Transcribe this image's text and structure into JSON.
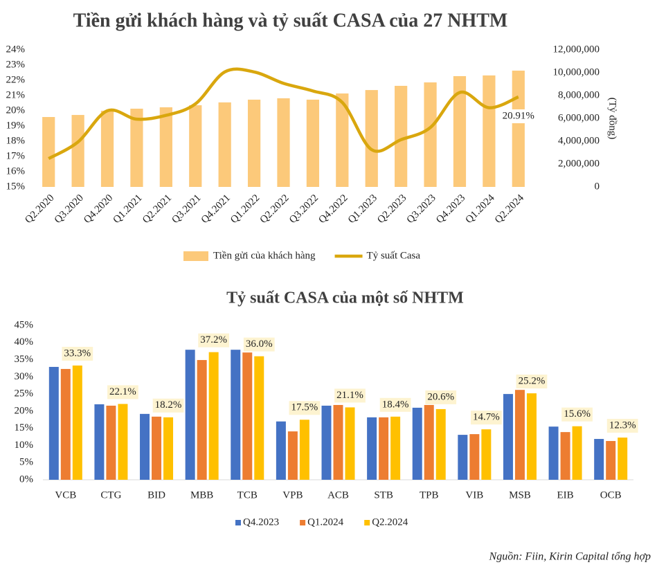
{
  "chart_data": [
    {
      "type": "combo",
      "title": "Tiền gửi khách hàng và tỷ suất CASA của 27 NHTM",
      "categories": [
        "Q2.2020",
        "Q3.2020",
        "Q4.2020",
        "Q1.2021",
        "Q2.2021",
        "Q3.2021",
        "Q4.2021",
        "Q1.2022",
        "Q2.2022",
        "Q3.2022",
        "Q4.2022",
        "Q1.2023",
        "Q2.2023",
        "Q3.2023",
        "Q4.2023",
        "Q1.2024",
        "Q2.2024"
      ],
      "series": [
        {
          "name": "Tiền gửi của khách hàng",
          "type": "bar",
          "axis": "y2",
          "color": "#fcc97a",
          "values": [
            6120000,
            6300000,
            6670000,
            6850000,
            6970000,
            7150000,
            7400000,
            7640000,
            7760000,
            7640000,
            8180000,
            8480000,
            8850000,
            9150000,
            9700000,
            9760000,
            10180000
          ]
        },
        {
          "name": "Tỷ suất Casa",
          "type": "line",
          "color": "#d9a70e",
          "values": [
            16.86,
            17.95,
            20.0,
            19.45,
            19.7,
            20.45,
            22.55,
            22.55,
            21.8,
            21.3,
            20.55,
            17.45,
            18.1,
            18.9,
            21.2,
            20.2,
            20.91
          ],
          "value_labels": [
            null,
            null,
            null,
            null,
            null,
            null,
            null,
            null,
            null,
            null,
            null,
            null,
            null,
            null,
            null,
            null,
            "20.91%"
          ]
        }
      ],
      "ylim": [
        15,
        24
      ],
      "yticks": [
        {
          "value": 15,
          "label": "15%"
        },
        {
          "value": 16,
          "label": "16%"
        },
        {
          "value": 17,
          "label": "17%"
        },
        {
          "value": 18,
          "label": "18%"
        },
        {
          "value": 19,
          "label": "19%"
        },
        {
          "value": 20,
          "label": "20%"
        },
        {
          "value": 21,
          "label": "21%"
        },
        {
          "value": 22,
          "label": "22%"
        },
        {
          "value": 23,
          "label": "23%"
        },
        {
          "value": 24,
          "label": "24%"
        }
      ],
      "y2lim": [
        0,
        12000000
      ],
      "y2ticks": [
        0,
        {
          "value": 2000000,
          "label": "2,000,000"
        },
        {
          "value": 4000000,
          "label": "4,000,000"
        },
        {
          "value": 6000000,
          "label": "6,000,000"
        },
        {
          "value": 8000000,
          "label": "8,000,000"
        },
        {
          "value": 10000000,
          "label": "10,000,000"
        },
        {
          "value": 12000000,
          "label": "12,000,000"
        }
      ],
      "y2label": "(Tỷ đồng)",
      "grid": false,
      "legend": "bottom"
    },
    {
      "type": "bar",
      "title": "Tỷ suất CASA của một số NHTM",
      "categories": [
        "VCB",
        "CTG",
        "BID",
        "MBB",
        "TCB",
        "VPB",
        "ACB",
        "STB",
        "TPB",
        "VIB",
        "MSB",
        "EIB",
        "OCB"
      ],
      "series": [
        {
          "name": "Q4.2023",
          "color": "#4472c4",
          "values": [
            32.9,
            22.0,
            19.2,
            37.9,
            37.9,
            17.0,
            21.6,
            18.2,
            21.0,
            13.1,
            25.0,
            15.5,
            11.9
          ]
        },
        {
          "name": "Q1.2024",
          "color": "#ed7d31",
          "values": [
            32.3,
            21.6,
            18.4,
            34.9,
            37.1,
            14.1,
            21.8,
            18.2,
            21.8,
            13.3,
            26.2,
            13.9,
            11.3
          ]
        },
        {
          "name": "Q2.2024",
          "color": "#ffc000",
          "values": [
            33.3,
            22.1,
            18.2,
            37.2,
            36.0,
            17.5,
            21.1,
            18.4,
            20.6,
            14.7,
            25.2,
            15.6,
            12.3
          ],
          "value_labels": [
            "33.3%",
            "22.1%",
            "18.2%",
            "37.2%",
            "36.0%",
            "17.5%",
            "21.1%",
            "18.4%",
            "20.6%",
            "14.7%",
            "25.2%",
            "15.6%",
            "12.3%"
          ]
        }
      ],
      "ylim": [
        0,
        45
      ],
      "yticks": [
        {
          "value": 0,
          "label": "0%"
        },
        {
          "value": 5,
          "label": "5%"
        },
        {
          "value": 10,
          "label": "10%"
        },
        {
          "value": 15,
          "label": "15%"
        },
        {
          "value": 20,
          "label": "20%"
        },
        {
          "value": 25,
          "label": "25%"
        },
        {
          "value": 30,
          "label": "30%"
        },
        {
          "value": 35,
          "label": "35%"
        },
        {
          "value": 40,
          "label": "40%"
        },
        {
          "value": 45,
          "label": "45%"
        }
      ],
      "grid": false,
      "legend": "bottom"
    }
  ],
  "source": "Nguồn: Fiin, Kirin Capital tổng hợp"
}
